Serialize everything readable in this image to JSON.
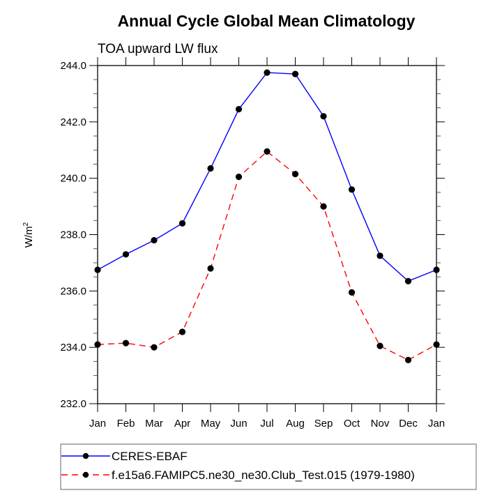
{
  "chart_data": {
    "type": "line",
    "title": "Annual Cycle Global Mean Climatology",
    "subtitle": "TOA upward LW flux",
    "xlabel": "",
    "ylabel": "W/m",
    "ylabel_superscript": "2",
    "categories": [
      "Jan",
      "Feb",
      "Mar",
      "Apr",
      "May",
      "Jun",
      "Jul",
      "Aug",
      "Sep",
      "Oct",
      "Nov",
      "Dec",
      "Jan"
    ],
    "ylim": [
      232.0,
      244.0
    ],
    "yticks": [
      232.0,
      234.0,
      236.0,
      238.0,
      240.0,
      242.0,
      244.0
    ],
    "ytick_labels": [
      "232.0",
      "234.0",
      "236.0",
      "238.0",
      "240.0",
      "242.0",
      "244.0"
    ],
    "grid": false,
    "legend_position": "bottom",
    "series": [
      {
        "name": "CERES-EBAF",
        "color": "#0000ff",
        "dash": "solid",
        "marker": "filled-circle",
        "values": [
          236.75,
          237.3,
          237.8,
          238.4,
          240.35,
          242.45,
          243.75,
          243.7,
          242.2,
          239.6,
          237.25,
          236.35,
          236.75
        ]
      },
      {
        "name": "f.e15a6.FAMIPC5.ne30_ne30.Club_Test.015 (1979-1980)",
        "color": "#ff0000",
        "dash": "dashed",
        "marker": "filled-circle",
        "values": [
          234.1,
          234.15,
          234.0,
          234.55,
          236.8,
          240.05,
          240.95,
          240.15,
          239.0,
          235.95,
          234.05,
          233.55,
          234.1
        ]
      }
    ]
  }
}
